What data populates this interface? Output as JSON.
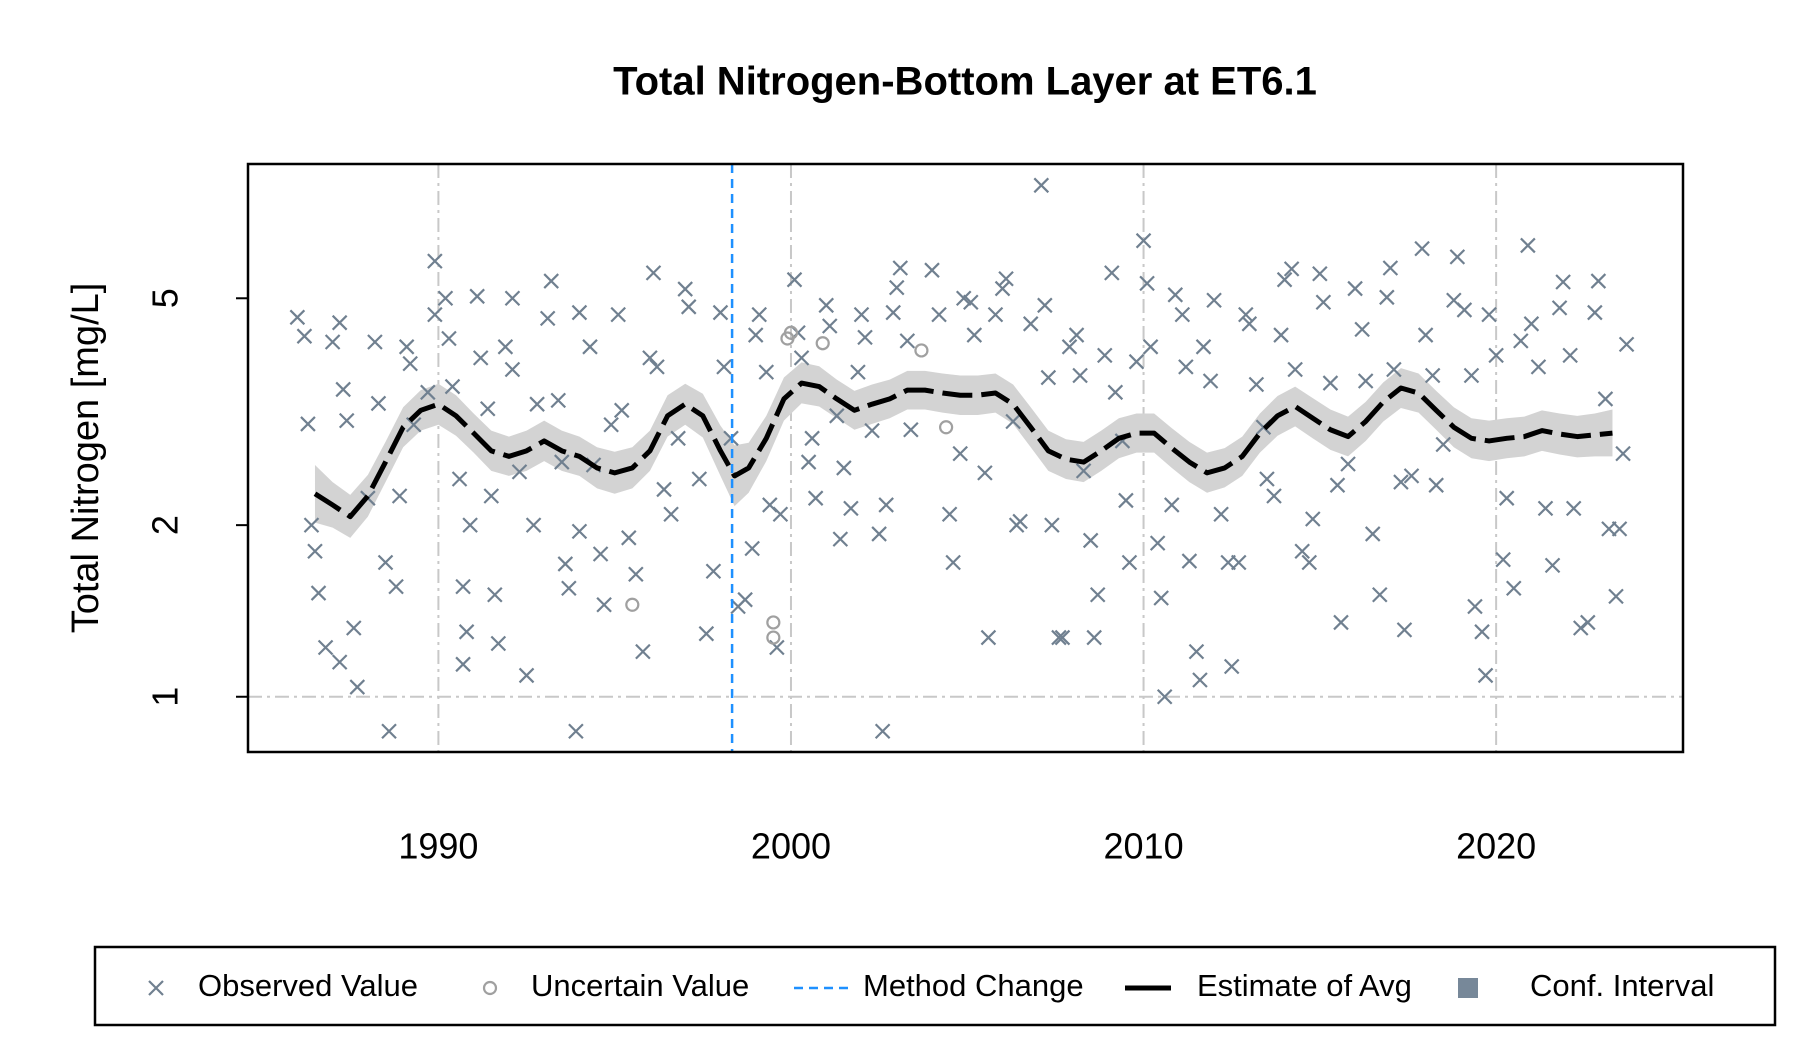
{
  "chart_data": {
    "type": "scatter",
    "title": "Total Nitrogen-Bottom Layer at ET6.1",
    "y_label": "Total Nitrogen [mg/L]",
    "xlim": [
      1984.6,
      2025.3
    ],
    "ylim": [
      0.8,
      8.6
    ],
    "xticks": [
      1990,
      2000,
      2010,
      2020
    ],
    "yticks": [
      1,
      2,
      5
    ],
    "log_y": true,
    "grid": true,
    "legend": "bottom",
    "series": [
      {
        "name": "Observed Value",
        "kind": "points",
        "marker": "x",
        "color": "#708090",
        "x": [
          1986.0,
          1986.2,
          1986.3,
          1986.4,
          1986.5,
          1986.6,
          1986.8,
          1987.0,
          1987.2,
          1987.2,
          1987.3,
          1987.4,
          1987.6,
          1987.7,
          1988.0,
          1988.2,
          1988.3,
          1988.5,
          1988.6,
          1988.8,
          1988.9,
          1989.1,
          1989.2,
          1989.3,
          1989.7,
          1989.9,
          1989.9,
          1990.2,
          1990.3,
          1990.4,
          1990.6,
          1990.7,
          1990.7,
          1990.8,
          1990.9,
          1991.1,
          1991.2,
          1991.4,
          1991.5,
          1991.6,
          1991.7,
          1991.9,
          1992.1,
          1992.1,
          1992.3,
          1992.5,
          1992.7,
          1992.8,
          1993.1,
          1993.2,
          1993.4,
          1993.5,
          1993.6,
          1993.7,
          1993.9,
          1994.0,
          1994.0,
          1994.3,
          1994.4,
          1994.6,
          1994.7,
          1994.9,
          1995.1,
          1995.2,
          1995.4,
          1995.6,
          1995.8,
          1996.0,
          1996.1,
          1996.2,
          1996.4,
          1996.6,
          1996.8,
          1997.0,
          1997.1,
          1997.4,
          1997.6,
          1997.8,
          1998.0,
          1998.1,
          1998.3,
          1998.5,
          1998.7,
          1998.9,
          1999.0,
          1999.1,
          1999.3,
          1999.4,
          1999.6,
          1999.7,
          2000.1,
          2000.2,
          2000.3,
          2000.5,
          2000.6,
          2000.7,
          2001.0,
          2001.1,
          2001.3,
          2001.4,
          2001.5,
          2001.7,
          2001.9,
          2002.0,
          2002.1,
          2002.3,
          2002.5,
          2002.6,
          2002.7,
          2002.9,
          2003.0,
          2003.1,
          2003.3,
          2003.4,
          2004.0,
          2004.2,
          2004.5,
          2004.6,
          2004.8,
          2004.9,
          2005.1,
          2005.2,
          2005.5,
          2005.6,
          2005.8,
          2006.0,
          2006.1,
          2006.3,
          2006.4,
          2006.5,
          2006.8,
          2007.1,
          2007.2,
          2007.3,
          2007.4,
          2007.6,
          2007.7,
          2007.9,
          2008.1,
          2008.2,
          2008.3,
          2008.5,
          2008.6,
          2008.7,
          2008.9,
          2009.1,
          2009.2,
          2009.4,
          2009.5,
          2009.6,
          2009.8,
          2010.0,
          2010.1,
          2010.2,
          2010.4,
          2010.5,
          2010.6,
          2010.8,
          2010.9,
          2011.1,
          2011.2,
          2011.3,
          2011.5,
          2011.6,
          2011.7,
          2011.9,
          2012.0,
          2012.2,
          2012.4,
          2012.5,
          2012.7,
          2012.9,
          2013.0,
          2013.2,
          2013.4,
          2013.5,
          2013.7,
          2013.9,
          2014.0,
          2014.2,
          2014.3,
          2014.5,
          2014.7,
          2014.8,
          2015.0,
          2015.1,
          2015.3,
          2015.5,
          2015.6,
          2015.8,
          2016.0,
          2016.2,
          2016.3,
          2016.5,
          2016.7,
          2016.9,
          2017.0,
          2017.1,
          2017.3,
          2017.4,
          2017.6,
          2017.9,
          2018.0,
          2018.2,
          2018.3,
          2018.5,
          2018.8,
          2018.9,
          2019.1,
          2019.3,
          2019.4,
          2019.6,
          2019.7,
          2019.8,
          2020.0,
          2020.2,
          2020.3,
          2020.5,
          2020.7,
          2020.9,
          2021.0,
          2021.2,
          2021.4,
          2021.6,
          2021.8,
          2021.9,
          2022.1,
          2022.2,
          2022.4,
          2022.6,
          2022.8,
          2022.9,
          2023.1,
          2023.2,
          2023.4,
          2023.5,
          2023.6,
          2023.7
        ],
        "values": [
          4.63,
          4.29,
          3.01,
          2.0,
          1.8,
          1.52,
          1.22,
          4.19,
          4.53,
          1.15,
          3.46,
          3.05,
          1.32,
          1.04,
          2.23,
          4.19,
          3.27,
          1.72,
          0.87,
          1.56,
          2.25,
          4.11,
          3.84,
          3.0,
          3.42,
          5.81,
          4.68,
          5.0,
          4.25,
          3.5,
          2.41,
          1.56,
          1.14,
          1.3,
          2.0,
          5.04,
          3.93,
          3.2,
          2.25,
          1.51,
          1.24,
          4.11,
          5.0,
          3.75,
          2.48,
          1.09,
          2.0,
          3.26,
          4.61,
          5.36,
          3.31,
          2.58,
          1.71,
          1.55,
          0.87,
          4.72,
          1.95,
          4.11,
          2.55,
          1.78,
          1.45,
          3.0,
          4.68,
          3.18,
          1.9,
          1.64,
          1.2,
          3.93,
          5.54,
          3.79,
          2.31,
          2.09,
          2.84,
          5.19,
          4.83,
          2.41,
          1.29,
          1.66,
          4.72,
          3.79,
          2.84,
          1.44,
          1.48,
          1.82,
          4.31,
          4.68,
          3.71,
          2.17,
          1.22,
          2.09,
          5.39,
          4.35,
          3.93,
          2.58,
          2.84,
          2.23,
          4.86,
          4.47,
          3.11,
          1.89,
          2.52,
          2.14,
          3.71,
          4.68,
          4.27,
          2.93,
          1.93,
          0.87,
          2.17,
          4.72,
          5.22,
          5.65,
          4.21,
          2.94,
          5.6,
          4.68,
          2.09,
          1.72,
          2.67,
          5.0,
          4.92,
          4.31,
          2.47,
          1.27,
          4.68,
          5.2,
          5.41,
          3.04,
          2.0,
          2.03,
          4.51,
          7.89,
          4.86,
          3.63,
          2.0,
          1.27,
          1.27,
          4.11,
          4.31,
          3.66,
          2.49,
          1.88,
          1.27,
          1.51,
          3.97,
          5.54,
          3.42,
          2.81,
          2.21,
          1.72,
          3.87,
          6.31,
          5.31,
          4.11,
          1.86,
          1.49,
          1.0,
          2.17,
          5.07,
          4.68,
          3.79,
          1.73,
          1.2,
          1.07,
          4.11,
          3.58,
          4.96,
          2.09,
          1.72,
          1.13,
          1.72,
          4.68,
          4.51,
          3.53,
          2.97,
          2.41,
          2.25,
          4.31,
          5.39,
          5.63,
          3.75,
          1.8,
          1.72,
          2.05,
          5.52,
          4.92,
          3.55,
          2.35,
          1.35,
          2.56,
          5.2,
          4.41,
          3.58,
          1.93,
          1.51,
          5.02,
          5.65,
          3.75,
          2.38,
          1.31,
          2.44,
          6.11,
          4.31,
          3.66,
          2.35,
          2.77,
          4.96,
          5.91,
          4.77,
          3.66,
          1.44,
          1.3,
          1.09,
          4.68,
          3.97,
          1.74,
          2.23,
          1.55,
          4.21,
          6.19,
          4.51,
          3.79,
          2.14,
          1.7,
          4.81,
          5.34,
          3.97,
          2.14,
          1.32,
          1.35,
          4.72,
          5.36,
          3.33,
          1.97,
          1.5,
          1.97,
          2.67,
          4.15
        ]
      },
      {
        "name": "Uncertain Value",
        "kind": "points",
        "marker": "o",
        "color": "#a0a0a0",
        "x": [
          1995.5,
          1999.5,
          1999.5,
          1999.9,
          2000.0,
          2000.9,
          2003.7,
          2004.4
        ],
        "values": [
          1.45,
          1.35,
          1.27,
          4.25,
          4.35,
          4.17,
          4.05,
          2.97
        ]
      },
      {
        "name": "Method Change",
        "kind": "vline",
        "color": "#1e90ff",
        "x": [
          1998.33
        ]
      },
      {
        "name": "Estimate of Avg",
        "kind": "line",
        "color": "#000000",
        "x": [
          1986.5,
          1987.0,
          1987.5,
          1988.0,
          1988.5,
          1989.0,
          1989.5,
          1990.0,
          1990.5,
          1991.0,
          1991.5,
          1992.0,
          1992.5,
          1993.0,
          1993.5,
          1994.0,
          1994.5,
          1995.0,
          1995.5,
          1996.0,
          1996.5,
          1997.0,
          1997.5,
          1998.0,
          1998.4,
          1998.8,
          1999.3,
          1999.8,
          2000.3,
          2000.8,
          2001.3,
          2001.8,
          2002.3,
          2002.8,
          2003.3,
          2003.8,
          2004.3,
          2004.8,
          2005.3,
          2005.8,
          2006.3,
          2006.8,
          2007.3,
          2007.8,
          2008.3,
          2008.8,
          2009.3,
          2009.8,
          2010.3,
          2010.8,
          2011.3,
          2011.8,
          2012.3,
          2012.8,
          2013.3,
          2013.8,
          2014.3,
          2014.8,
          2015.3,
          2015.8,
          2016.3,
          2016.8,
          2017.3,
          2017.8,
          2018.3,
          2018.8,
          2019.3,
          2019.8,
          2020.3,
          2020.8,
          2021.3,
          2021.8,
          2022.3,
          2022.8,
          2023.3
        ],
        "values": [
          2.27,
          2.17,
          2.07,
          2.25,
          2.58,
          2.97,
          3.18,
          3.26,
          3.11,
          2.9,
          2.7,
          2.64,
          2.7,
          2.81,
          2.7,
          2.64,
          2.52,
          2.47,
          2.52,
          2.7,
          3.11,
          3.26,
          3.11,
          2.7,
          2.44,
          2.52,
          2.84,
          3.33,
          3.55,
          3.5,
          3.33,
          3.18,
          3.26,
          3.33,
          3.45,
          3.45,
          3.41,
          3.38,
          3.38,
          3.41,
          3.26,
          2.97,
          2.7,
          2.61,
          2.58,
          2.7,
          2.84,
          2.9,
          2.9,
          2.73,
          2.58,
          2.47,
          2.52,
          2.64,
          2.9,
          3.11,
          3.23,
          3.08,
          2.94,
          2.86,
          3.04,
          3.29,
          3.48,
          3.41,
          3.18,
          2.97,
          2.84,
          2.81,
          2.84,
          2.86,
          2.93,
          2.89,
          2.86,
          2.88,
          2.9
        ]
      },
      {
        "name": "Conf. Interval",
        "kind": "band",
        "color": "#778899",
        "band_color": "#d3d3d3",
        "x": [
          1986.5,
          1987.0,
          1987.5,
          1988.0,
          1988.5,
          1989.0,
          1989.5,
          1990.0,
          1990.5,
          1991.0,
          1991.5,
          1992.0,
          1992.5,
          1993.0,
          1993.5,
          1994.0,
          1994.5,
          1995.0,
          1995.5,
          1996.0,
          1996.5,
          1997.0,
          1997.5,
          1998.0,
          1998.4,
          1998.8,
          1999.3,
          1999.8,
          2000.3,
          2000.8,
          2001.3,
          2001.8,
          2002.3,
          2002.8,
          2003.3,
          2003.8,
          2004.3,
          2004.8,
          2005.3,
          2005.8,
          2006.3,
          2006.8,
          2007.3,
          2007.8,
          2008.3,
          2008.8,
          2009.3,
          2009.8,
          2010.3,
          2010.8,
          2011.3,
          2011.8,
          2012.3,
          2012.8,
          2013.3,
          2013.8,
          2014.3,
          2014.8,
          2015.3,
          2015.8,
          2016.3,
          2016.8,
          2017.3,
          2017.8,
          2018.3,
          2018.8,
          2019.3,
          2019.8,
          2020.3,
          2020.8,
          2021.3,
          2021.8,
          2022.3,
          2022.8,
          2023.3
        ],
        "lower": [
          2.02,
          1.98,
          1.9,
          2.07,
          2.38,
          2.74,
          2.93,
          3.0,
          2.87,
          2.68,
          2.49,
          2.44,
          2.49,
          2.59,
          2.49,
          2.44,
          2.32,
          2.27,
          2.32,
          2.49,
          2.86,
          3.0,
          2.85,
          2.44,
          2.16,
          2.28,
          2.59,
          3.05,
          3.27,
          3.23,
          3.08,
          2.94,
          3.01,
          3.08,
          3.19,
          3.19,
          3.15,
          3.12,
          3.12,
          3.15,
          3.01,
          2.74,
          2.49,
          2.41,
          2.38,
          2.49,
          2.62,
          2.68,
          2.68,
          2.52,
          2.38,
          2.28,
          2.33,
          2.44,
          2.68,
          2.87,
          2.98,
          2.84,
          2.71,
          2.64,
          2.81,
          3.04,
          3.21,
          3.15,
          2.94,
          2.74,
          2.62,
          2.59,
          2.62,
          2.64,
          2.7,
          2.66,
          2.63,
          2.64,
          2.64
        ],
        "upper": [
          2.55,
          2.38,
          2.26,
          2.45,
          2.8,
          3.22,
          3.45,
          3.54,
          3.38,
          3.14,
          2.93,
          2.86,
          2.93,
          3.05,
          2.93,
          2.86,
          2.74,
          2.69,
          2.74,
          2.93,
          3.38,
          3.54,
          3.4,
          2.99,
          2.76,
          2.79,
          3.11,
          3.63,
          3.86,
          3.8,
          3.6,
          3.44,
          3.53,
          3.6,
          3.73,
          3.73,
          3.69,
          3.66,
          3.66,
          3.69,
          3.53,
          3.22,
          2.93,
          2.83,
          2.8,
          2.93,
          3.08,
          3.14,
          3.14,
          2.96,
          2.8,
          2.68,
          2.73,
          2.86,
          3.14,
          3.37,
          3.5,
          3.34,
          3.19,
          3.1,
          3.29,
          3.56,
          3.77,
          3.69,
          3.44,
          3.22,
          3.08,
          3.05,
          3.08,
          3.1,
          3.18,
          3.14,
          3.11,
          3.14,
          3.19
        ]
      }
    ]
  }
}
